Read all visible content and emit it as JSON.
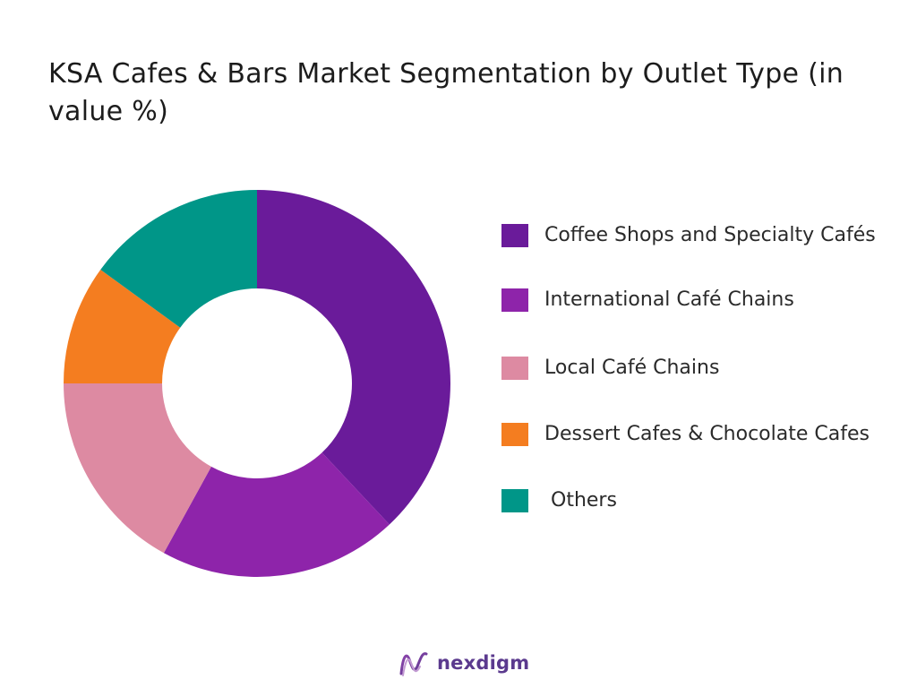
{
  "chart_data": {
    "type": "pie",
    "title": "KSA Cafes & Bars Market Segmentation by Outlet Type (in value %)",
    "donut": true,
    "legend_position": "right",
    "categories": [
      "Coffee Shops and Specialty Cafés",
      "International Café Chains",
      "Local Café Chains",
      "Dessert Cafes & Chocolate Cafes",
      " Others"
    ],
    "values": [
      38,
      20,
      17,
      10,
      15
    ],
    "colors": [
      "#6a1b9a",
      "#8e24aa",
      "#dd8aa2",
      "#f47d20",
      "#009688"
    ]
  },
  "logo": {
    "text": "nexdigm"
  }
}
